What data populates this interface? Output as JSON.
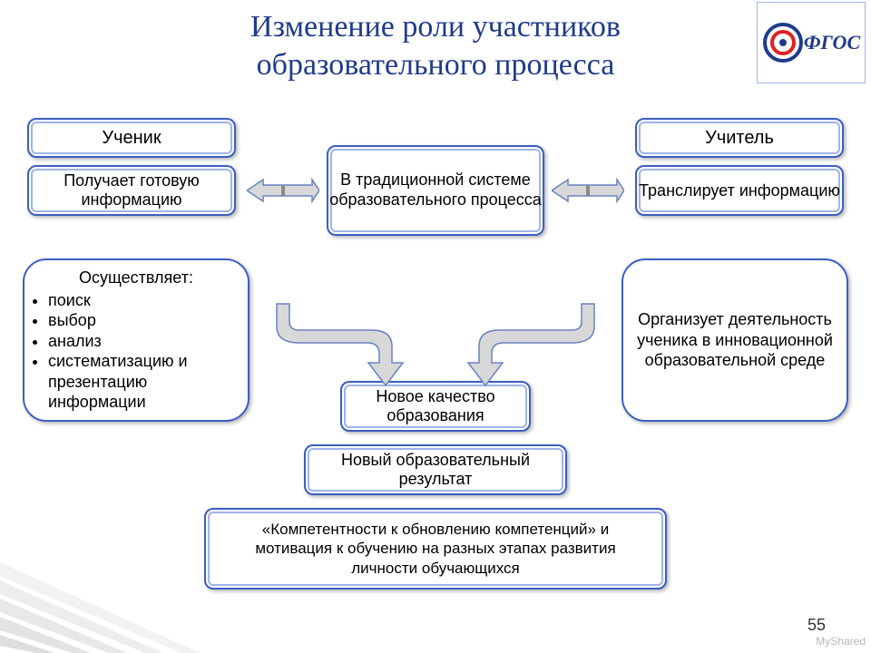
{
  "title_line1": "Изменение роли участников",
  "title_line2": "образовательного процесса",
  "logo_text": "ФГОС",
  "page_number": "55",
  "watermark": "MyShared",
  "boxes": {
    "student": "Ученик",
    "teacher": "Учитель",
    "student_action": "Получает готовую информацию",
    "teacher_action": "Транслирует информацию",
    "traditional": "В традиционной системе образовательного процесса",
    "student_new_header": "Осуществляет:",
    "student_new_items": [
      "поиск",
      "выбор",
      "анализ",
      "систематизацию и презентацию информации"
    ],
    "teacher_new": "Организует деятельность ученика в инновационной образовательной среде",
    "new_quality": "Новое качество образования",
    "new_result": "Новый образовательный результат",
    "competence": "«Компетентности к обновлению компетенций» и мотивация к обучению на разных этапах развития личности обучающихся"
  },
  "style": {
    "border_color": "#3b5fc1",
    "border_width": 2,
    "inner_shadow": "inset 0 0 0 3px #ffffff, inset 0 0 0 5px #9fb4e8",
    "font_size_box": 18,
    "font_size_small": 17,
    "arrow_fill": "#d8d8d8",
    "arrow_stroke": "#6a82c4"
  }
}
